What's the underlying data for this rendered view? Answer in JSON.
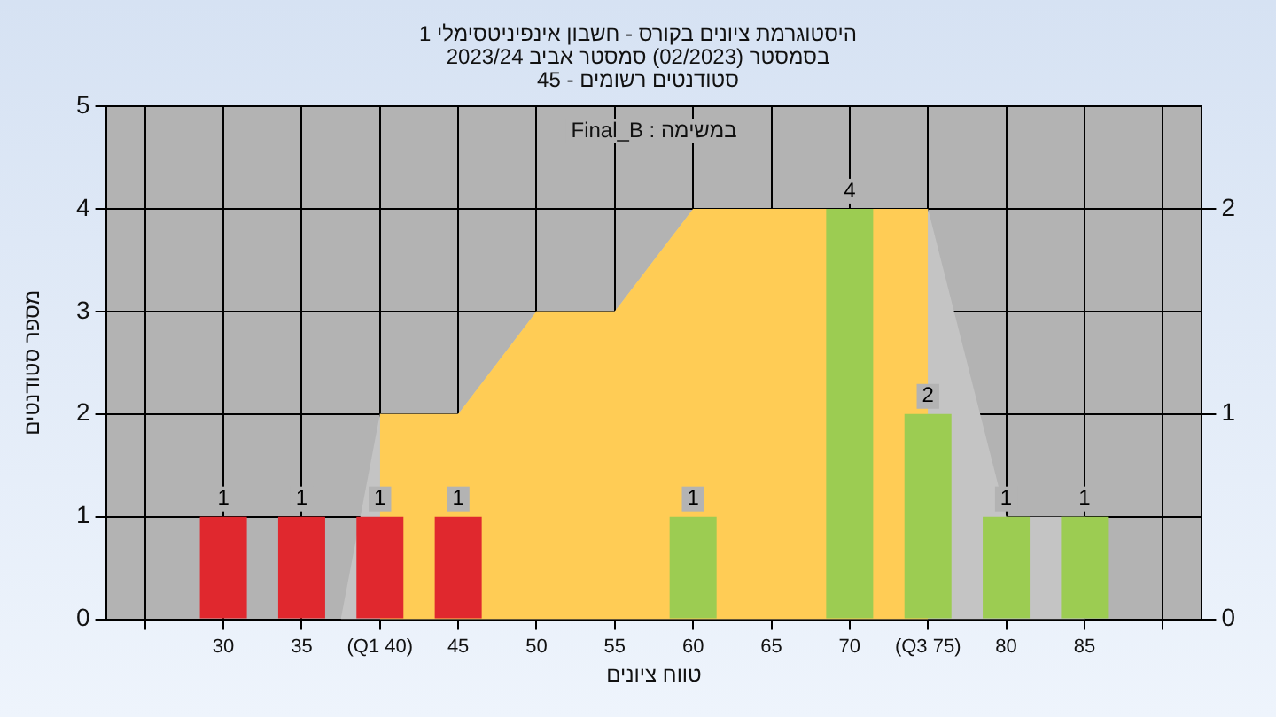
{
  "chart_data": {
    "type": "bar",
    "title": "היסטוגרמת ציונים בקורס - חשבון אינפיניטסימלי 1",
    "subtitle": "בסמסטר (02/2023) סמסטר אביב 2023/24\nסטודנטים רשומים - 45",
    "xlabel": "טווח ציונים",
    "ylabel": "מספר סטודנטים",
    "annotations": [
      "במשימה : Final_B"
    ],
    "xlim": [
      25,
      90
    ],
    "xticks": [
      {
        "value": 25,
        "label": null
      },
      30,
      35,
      {
        "value": 40,
        "label": "(Q1 40)"
      },
      45,
      50,
      55,
      60,
      65,
      70,
      {
        "value": 75,
        "label": "(Q3 75)"
      },
      80,
      85,
      {
        "value": 90,
        "label": null
      }
    ],
    "ylim": [
      0,
      5
    ],
    "yticks": [
      0,
      1,
      2,
      3,
      4,
      5
    ],
    "y2lim": [
      0,
      2.5
    ],
    "y2ticks": [
      0,
      1,
      2
    ],
    "grid": true,
    "legend": false,
    "series": [
      {
        "x": [
          30,
          35,
          40,
          45,
          50,
          55,
          60,
          65,
          70,
          75,
          80,
          85
        ],
        "values": [
          1,
          1,
          1,
          1,
          0,
          0,
          1,
          0,
          4,
          2,
          1,
          1
        ],
        "colors": [
          "#e0282e",
          "#e0282e",
          "#e0282e",
          "#e0282e",
          "#9ccc52",
          "#9ccc52",
          "#9ccc52",
          "#9ccc52",
          "#9ccc52",
          "#9ccc52",
          "#9ccc52",
          "#9ccc52"
        ],
        "value_labels": [
          "1",
          "1",
          "1",
          "1",
          null,
          null,
          "1",
          null,
          "4",
          "2",
          "1",
          "1"
        ]
      },
      {
        "type": "area",
        "axis": "y2",
        "x": [
          37.5,
          40,
          45,
          50,
          55,
          60,
          75,
          80,
          85
        ],
        "values": [
          0,
          1,
          1,
          1.5,
          1.5,
          2,
          2,
          0.5,
          0.5
        ],
        "color": "#c4c4c4"
      },
      {
        "type": "area",
        "axis": "y2",
        "x": [
          40,
          45,
          50,
          55,
          60,
          75
        ],
        "values": [
          1,
          1,
          1.5,
          1.5,
          2,
          2
        ],
        "color": "#ffcc55"
      }
    ]
  }
}
